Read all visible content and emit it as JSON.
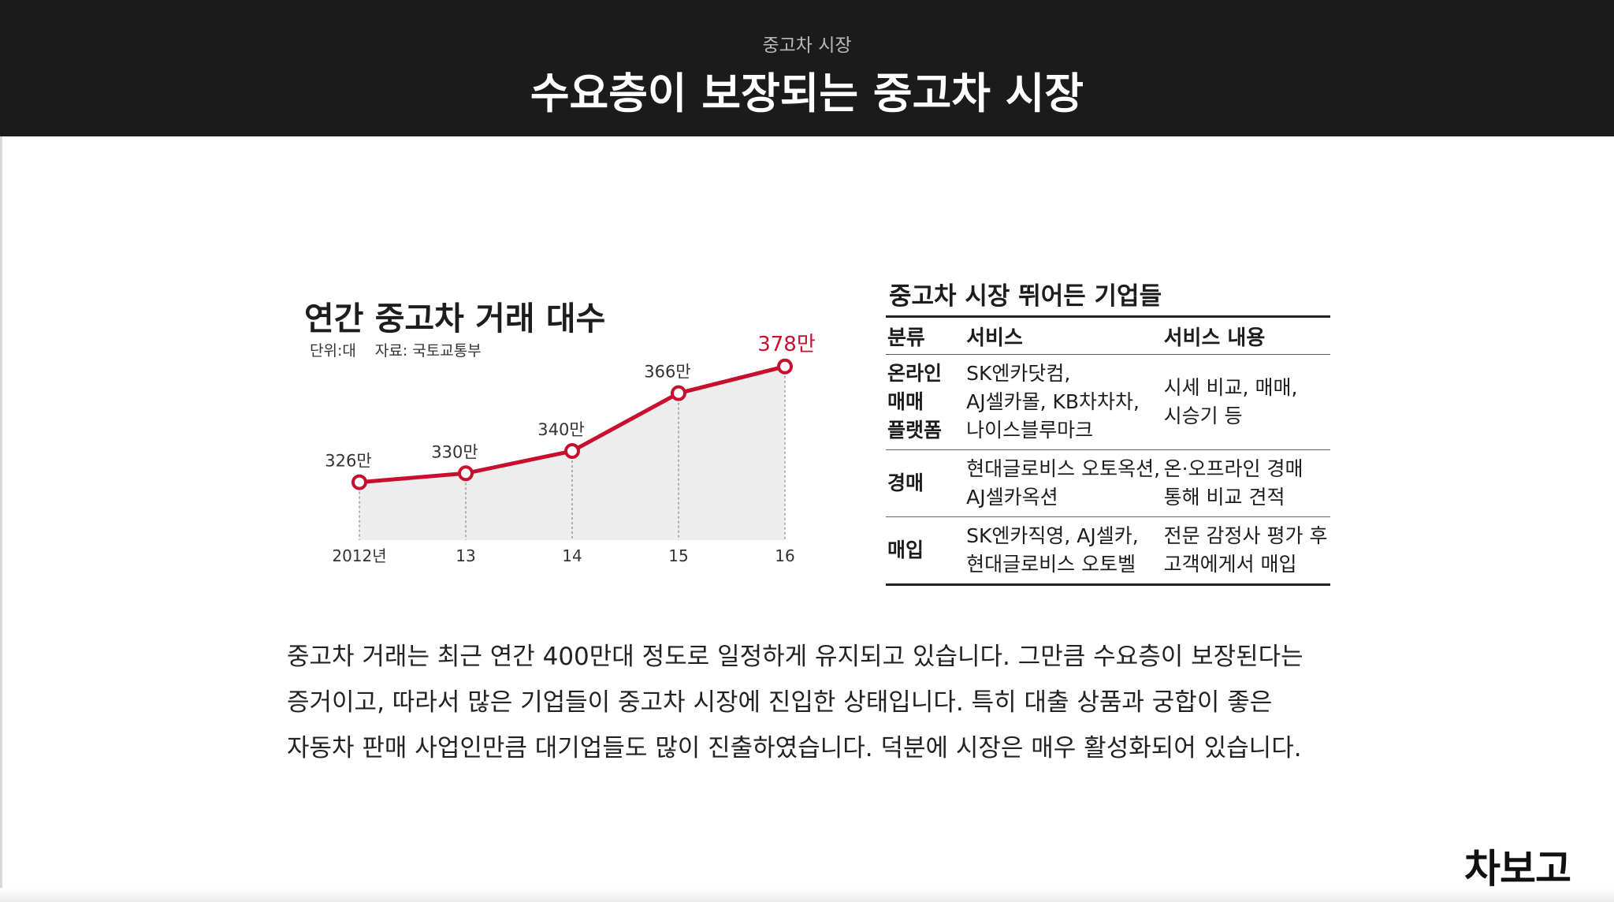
{
  "header": {
    "kicker": "중고차 시장",
    "title": "수요층이 보장되는 중고차 시장"
  },
  "chart_data": {
    "type": "line",
    "title": "연간 중고차 거래 대수",
    "unit_label": "단위:대",
    "source_label": "자료: 국토교통부",
    "categories": [
      "2012년",
      "13",
      "14",
      "15",
      "16"
    ],
    "values": [
      326,
      330,
      340,
      366,
      378
    ],
    "data_labels": [
      "326만",
      "330만",
      "340만",
      "366만",
      "378만"
    ],
    "ylim": [
      300,
      385
    ],
    "series_color": "#c8102e",
    "fill_color": "#ededed",
    "highlight_color": "#c8102e"
  },
  "table": {
    "title": "중고차 시장 뛰어든 기업들",
    "headers": [
      "분류",
      "서비스",
      "서비스 내용"
    ],
    "rows": [
      {
        "category": [
          "온라인",
          "매매",
          "플랫폼"
        ],
        "service": [
          "SK엔카닷컴,",
          "AJ셀카몰, KB차차차,",
          "나이스블루마크"
        ],
        "detail": [
          "시세 비교, 매매,",
          "시승기 등"
        ]
      },
      {
        "category": [
          "경매"
        ],
        "service": [
          "현대글로비스 오토옥션,",
          "AJ셀카옥션"
        ],
        "detail": [
          "온·오프라인 경매",
          "통해 비교 견적"
        ]
      },
      {
        "category": [
          "매입"
        ],
        "service": [
          "SK엔카직영, AJ셀카,",
          "현대글로비스 오토벨"
        ],
        "detail": [
          "전문 감정사 평가 후",
          "고객에게서 매입"
        ]
      }
    ]
  },
  "body": {
    "lines": [
      "중고차 거래는 최근 연간 400만대 정도로 일정하게 유지되고 있습니다. 그만큼 수요층이 보장된다는",
      "증거이고, 따라서 많은 기업들이 중고차 시장에 진입한 상태입니다. 특히 대출 상품과 궁합이 좋은",
      "자동차 판매 사업인만큼 대기업들도 많이 진출하였습니다. 덕분에 시장은 매우 활성화되어 있습니다."
    ]
  },
  "logo": {
    "text": "차보고"
  }
}
